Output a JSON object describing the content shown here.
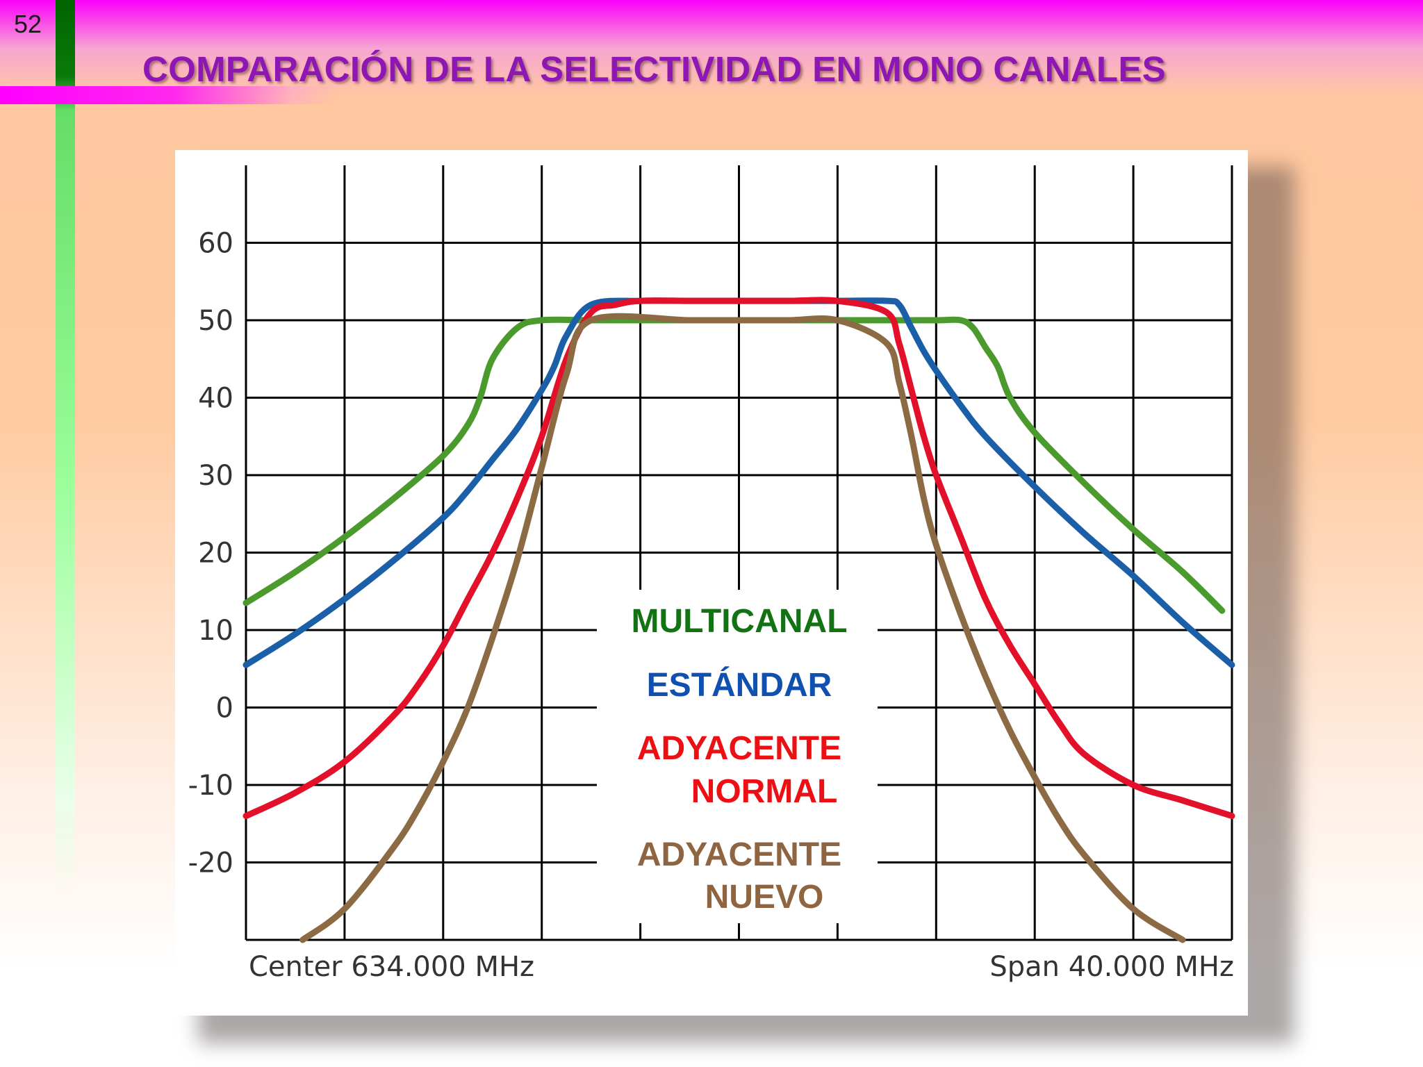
{
  "slide": {
    "number": "52",
    "title": "COMPARACIÓN DE LA SELECTIVIDAD EN MONO CANALES"
  },
  "chart_data": {
    "type": "line",
    "title": "",
    "xlabel": "",
    "ylabel": "",
    "center_label": "Center 634.000 MHz",
    "span_label": "Span 40.000 MHz",
    "x_unit": "MHz",
    "xlim": [
      614,
      654
    ],
    "ylim": [
      -30,
      70
    ],
    "yticks": [
      60,
      50,
      40,
      30,
      20,
      10,
      0,
      -10,
      -20
    ],
    "grid": true,
    "legend_position": "center",
    "series": [
      {
        "name": "MULTICANAL",
        "legend_lines": [
          "MULTICANAL"
        ],
        "color": "#4a9a2e",
        "text_color": "#127312",
        "x": [
          614,
          616,
          618,
          620,
          622,
          623,
          623.5,
          624,
          625,
          626,
          628,
          630,
          632,
          634,
          636,
          638,
          640,
          642,
          643,
          643.5,
          644,
          644.5,
          645,
          646,
          648,
          650,
          652,
          653.6
        ],
        "y": [
          13.5,
          17.5,
          22,
          27,
          32.5,
          36.5,
          40,
          45,
          49,
          50,
          50,
          50,
          50,
          50,
          50,
          50,
          50,
          50,
          50,
          49,
          46.5,
          44,
          40,
          35.5,
          29,
          23,
          17.5,
          12.5
        ]
      },
      {
        "name": "ESTÁNDAR",
        "legend_lines": [
          "ESTÁNDAR"
        ],
        "color": "#1a5fa8",
        "text_color": "#1050b0",
        "x": [
          614,
          616,
          618,
          620,
          622,
          623,
          624,
          625,
          626,
          626.5,
          627,
          628,
          630,
          632,
          634,
          636,
          638,
          640,
          640.5,
          641,
          641.5,
          642,
          643,
          644,
          646,
          648,
          650,
          652,
          654
        ],
        "y": [
          5.5,
          9.5,
          14,
          19,
          24.5,
          28,
          32,
          36,
          41,
          44,
          48,
          52,
          52.5,
          52.5,
          52.5,
          52.5,
          52.5,
          52.5,
          52,
          49,
          46,
          43.5,
          39,
          35,
          28.5,
          22.5,
          17,
          11,
          5.5
        ]
      },
      {
        "name": "ADYACENTE NORMAL",
        "legend_lines": [
          "ADYACENTE",
          "NORMAL"
        ],
        "color": "#e3102a",
        "text_color": "#ec0f14",
        "x": [
          614,
          616,
          618,
          620,
          621,
          622,
          623,
          624,
          625,
          626,
          627,
          628,
          629,
          630,
          632,
          634,
          636,
          638,
          640,
          640.5,
          641,
          641.5,
          642,
          643,
          644,
          645,
          646,
          647,
          648,
          650,
          652,
          654
        ],
        "y": [
          -14,
          -11,
          -7,
          -1,
          3,
          8,
          14,
          20,
          27,
          35,
          45,
          51,
          52,
          52.5,
          52.5,
          52.5,
          52.5,
          52.5,
          51,
          47,
          41,
          35,
          30,
          22,
          14,
          8,
          3,
          -2,
          -6,
          -10,
          -12,
          -14
        ]
      },
      {
        "name": "ADYACENTE NUEVO",
        "legend_lines": [
          "ADYACENTE",
          "NUEVO"
        ],
        "color": "#8b6a44",
        "text_color": "#8f6440",
        "x": [
          616.3,
          618,
          620,
          621,
          622,
          623,
          624,
          625,
          626,
          627,
          628,
          632,
          634,
          636,
          638,
          640,
          640.5,
          641,
          641.5,
          642,
          643,
          644,
          645,
          646,
          647,
          648,
          650,
          652
        ],
        "y": [
          -30,
          -26,
          -18,
          -13,
          -7,
          0,
          9,
          19,
          31,
          43,
          50,
          50,
          50,
          50,
          50,
          47,
          42,
          35,
          27,
          21,
          12,
          4,
          -3,
          -9,
          -14.5,
          -19,
          -26,
          -30
        ]
      }
    ]
  }
}
